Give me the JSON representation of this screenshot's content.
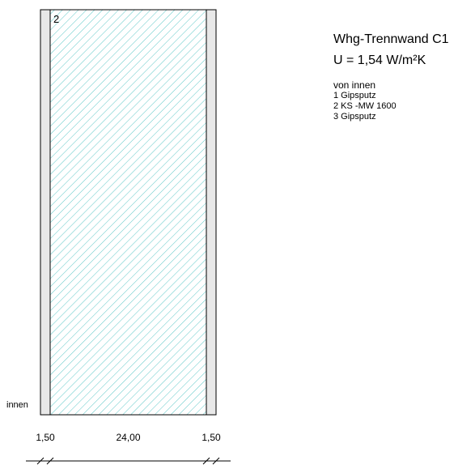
{
  "wall": {
    "title": "Whg-Trennwand C1",
    "u_value": "U = 1,54 W/m²K",
    "direction_label": "von innen",
    "side_label": "innen",
    "layers": [
      {
        "label": "1 Gipsputz",
        "thickness": 1.5,
        "thickness_label": "1,50",
        "fill": "#e8e8e8",
        "hatch": false,
        "number": ""
      },
      {
        "label": "2 KS -MW 1600",
        "thickness": 24.0,
        "thickness_label": "24,00",
        "fill": "#ffffff",
        "hatch": true,
        "hatch_color": "#5fc8c8",
        "number": "2"
      },
      {
        "label": "3 Gipsputz",
        "thickness": 1.5,
        "thickness_label": "1,50",
        "fill": "#e8e8e8",
        "hatch": false,
        "number": ""
      }
    ]
  },
  "colors": {
    "outline": "#000000",
    "plaster": "#e8e8e8",
    "hatch": "#5fc8c8"
  }
}
